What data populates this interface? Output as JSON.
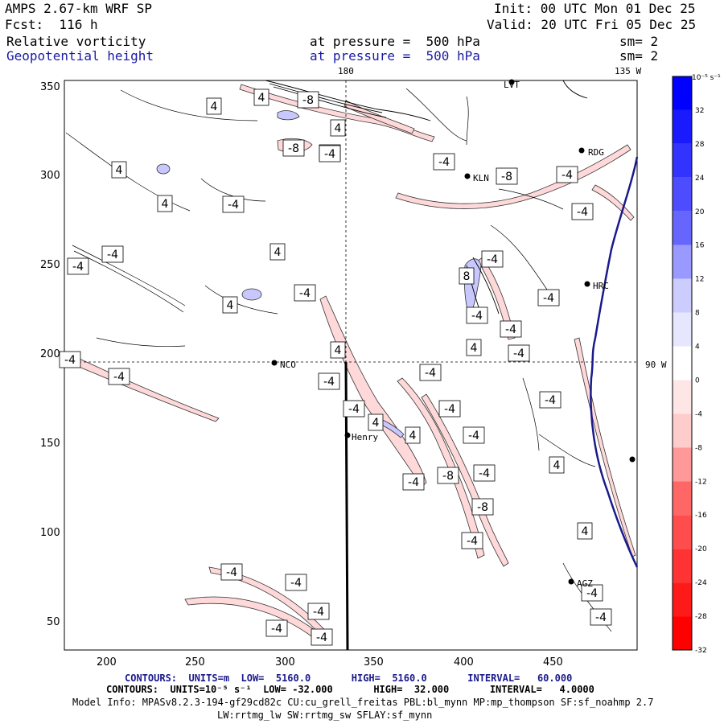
{
  "header": {
    "model": "AMPS 2.67-km WRF SP",
    "forecast": "Fcst:  116 h",
    "init": "Init: 00 UTC Mon 01 Dec 25",
    "valid": "Valid: 20 UTC Fri 05 Dec 25",
    "field1_name": "Relative vorticity",
    "field1_level": "at pressure =  500 hPa",
    "field1_smooth": "sm= 2",
    "field2_name": "Geopotential height",
    "field2_level": "at pressure =  500 hPa",
    "field2_smooth": "sm= 2"
  },
  "map": {
    "lon_label_top": "180",
    "lon_label_right_top": "135 W",
    "lon_label_right_mid": "90 W",
    "x_ticks": [
      "200",
      "250",
      "300",
      "350",
      "400",
      "450"
    ],
    "y_ticks": [
      "350",
      "300",
      "250",
      "200",
      "150",
      "100",
      "50"
    ],
    "stations": [
      {
        "id": "LVT",
        "label": "LVT"
      },
      {
        "id": "RDG",
        "label": "RDG"
      },
      {
        "id": "KLN",
        "label": "KLN"
      },
      {
        "id": "HRC",
        "label": "HRC"
      },
      {
        "id": "NCO",
        "label": "NCO"
      },
      {
        "id": "Henry",
        "label": "Henry"
      },
      {
        "id": "AGZ",
        "label": "AGZ"
      }
    ],
    "contour_labels": [
      "4",
      "4",
      "-8",
      "4",
      "-4",
      "-8",
      "4",
      "4",
      "-4",
      "-4",
      "-4",
      "-4",
      "4",
      "-4",
      "-4",
      "4",
      "4",
      "-4",
      "8",
      "-4",
      "-4",
      "-4",
      "4",
      "-8",
      "-4",
      "-4",
      "-4",
      "-4",
      "-4",
      "-4",
      "-4",
      "4",
      "4",
      "-4",
      "-4",
      "-8",
      "-4",
      "-4",
      "-8",
      "-4",
      "4",
      "-4",
      "-4",
      "-4",
      "-4",
      "-4",
      "-4",
      "-4",
      "4",
      "-4",
      "-4"
    ]
  },
  "colorbar": {
    "unit_label": "10⁻⁵ s⁻¹",
    "levels": [
      "32",
      "28",
      "24",
      "20",
      "16",
      "12",
      "8",
      "4",
      "0",
      "-4",
      "-8",
      "-12",
      "-16",
      "-20",
      "-24",
      "-28",
      "-32"
    ],
    "colors": [
      "#0000ff",
      "#1a1aff",
      "#3333ff",
      "#4d4dff",
      "#6666ff",
      "#9999ff",
      "#ccccff",
      "#e6e6ff",
      "#ffffff",
      "#ffe6e6",
      "#ffcccc",
      "#ff9999",
      "#ff6666",
      "#ff4d4d",
      "#ff3333",
      "#ff1a1a",
      "#ff0000"
    ]
  },
  "footer": {
    "line1": "CONTOURS:  UNITS=m  LOW=  5160.0       HIGH=  5160.0       INTERVAL=   60.000",
    "line2": "CONTOURS:  UNITS=10⁻⁵ s⁻¹  LOW= -32.000       HIGH=  32.000       INTERVAL=   4.0000",
    "line3": "Model Info: MPASv8.2.3-194-gf29cd82c CU:cu_grell_freitas PBL:bl_mynn MP:mp_thompson SF:sf_noahmp 2.7",
    "line4": "LW:rrtmg_lw SW:rrtmg_sw SFLAY:sf_mynn"
  },
  "colors": {
    "height_contour": "#1a1a8c",
    "neg_fill": "#ffd6d6",
    "pos_fill": "#c8c8ff"
  }
}
